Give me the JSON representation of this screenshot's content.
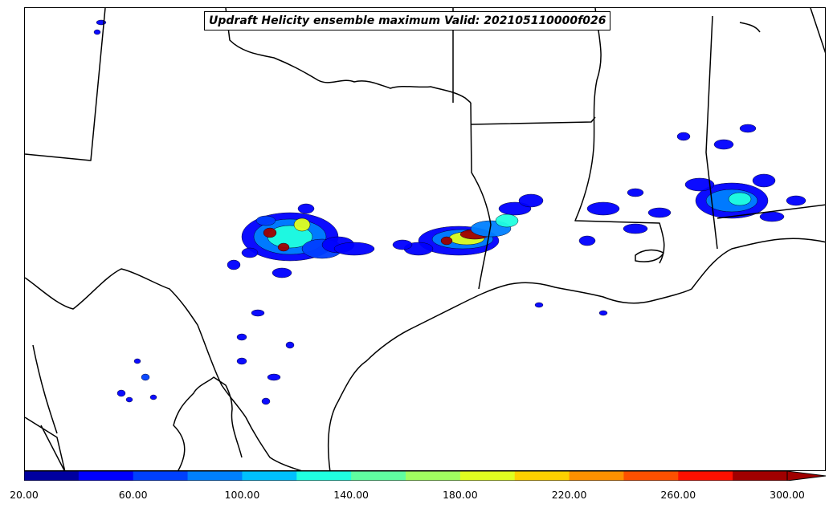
{
  "title": "Updraft Helicity ensemble maximum Valid: 202105110000f026",
  "colorbar": {
    "colors": [
      "#00009f",
      "#0000ff",
      "#0040ff",
      "#0080ff",
      "#00c0ff",
      "#20ffe0",
      "#60ffa0",
      "#a0ff60",
      "#e0ff20",
      "#ffd000",
      "#ff9000",
      "#ff5000",
      "#ff1000",
      "#a00000"
    ],
    "tick_labels": [
      "20.00",
      "60.00",
      "100.00",
      "140.00",
      "180.00",
      "220.00",
      "260.00",
      "300.00"
    ],
    "extend": "max"
  }
}
